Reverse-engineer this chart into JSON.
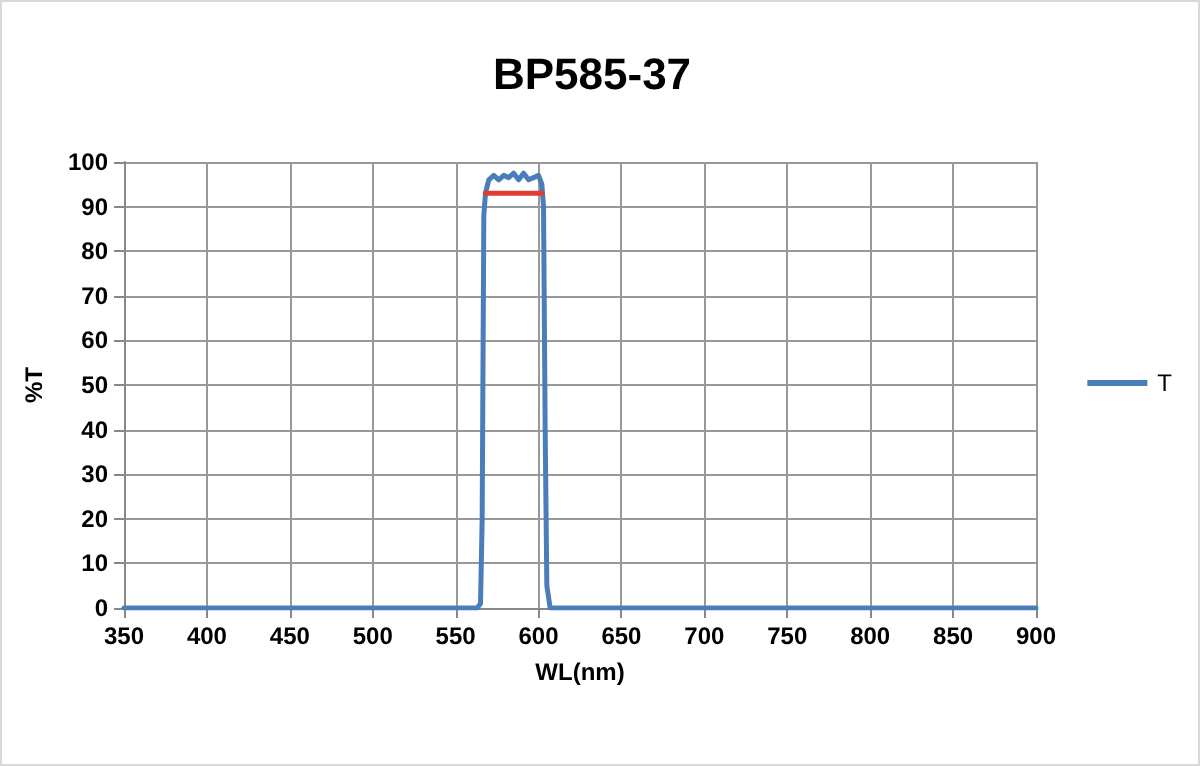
{
  "chart_data": {
    "type": "line",
    "title": "BP585-37",
    "xlabel": "WL(nm)",
    "ylabel": "%T",
    "xlim": [
      350,
      900
    ],
    "xticks": [
      350,
      400,
      450,
      500,
      550,
      600,
      650,
      700,
      750,
      800,
      850,
      900
    ],
    "ylim": [
      0,
      100
    ],
    "yticks": [
      0,
      10,
      20,
      30,
      40,
      50,
      60,
      70,
      80,
      90,
      100
    ],
    "grid": true,
    "legend": "right",
    "marker": "none",
    "line_style": "solid",
    "series": [
      {
        "name": "T",
        "color": "#4a7ebb",
        "x": [
          350,
          400,
          450,
          500,
          550,
          563,
          565,
          566,
          567,
          568,
          570,
          573,
          576,
          579,
          582,
          585,
          588,
          591,
          594,
          597,
          600,
          602,
          603,
          604,
          605,
          607,
          650,
          700,
          750,
          800,
          850,
          900
        ],
        "values": [
          0,
          0,
          0,
          0,
          0,
          0,
          1,
          20,
          88,
          93,
          96,
          97,
          96,
          97,
          96.5,
          97.5,
          96,
          97.5,
          96,
          96.5,
          97,
          95,
          90,
          40,
          5,
          0,
          0,
          0,
          0,
          0,
          0,
          0
        ]
      },
      {
        "color": "#e03c31",
        "x": [
          568,
          602
        ],
        "values": [
          93,
          93
        ]
      }
    ]
  }
}
